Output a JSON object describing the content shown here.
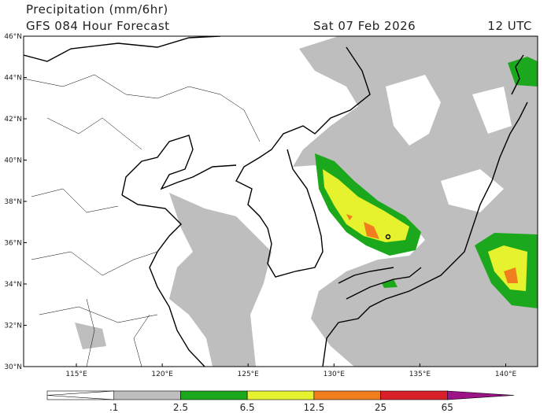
{
  "header": {
    "title": "Precipitation (mm/6hr)",
    "model": "GFS 084 Hour Forecast",
    "date": "Sat 07 Feb 2026",
    "time": "12 UTC"
  },
  "map": {
    "lat_labels": [
      "46°N",
      "44°N",
      "42°N",
      "40°N",
      "38°N",
      "36°N",
      "34°N",
      "32°N",
      "30°N"
    ],
    "lon_labels": [
      "115°E",
      "120°E",
      "125°E",
      "130°E",
      "135°E",
      "140°E"
    ]
  },
  "colorbar": {
    "labels": [
      ".1",
      "2.5",
      "6.5",
      "12.5",
      "25",
      "65"
    ],
    "colors": [
      "#ffffff",
      "#bebebe",
      "#1ca81c",
      "#e6f22d",
      "#f07d1e",
      "#d9202a",
      "#9c1486"
    ]
  }
}
